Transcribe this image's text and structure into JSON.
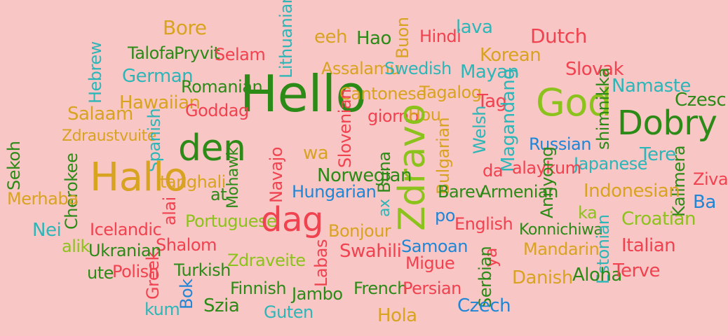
{
  "colors": {
    "background": "#f9c6c6",
    "green": "#3a9a1e",
    "dark_green": "#2c8a17",
    "lime": "#8cc21c",
    "red": "#f0424f",
    "orange": "#d8a321",
    "blue": "#1f86d6",
    "teal": "#2db6b8"
  },
  "words": {
    "bore": "Bore",
    "talofa": "Talofa",
    "pryvit": "Pryvit",
    "selam": "Selam",
    "lithuanian": "Lithuanian",
    "eeh": "eeh",
    "hao": "Hao",
    "buon": "Buon",
    "hindi": "Hindi",
    "lava": "lava",
    "dutch": "Dutch",
    "hebrew": "Hebrew",
    "german": "German",
    "assalamu": "Assalamu",
    "swedish": "Swedish",
    "korean": "Korean",
    "mayan": "Mayan",
    "slovak": "Slovak",
    "romanian": "Romanian",
    "hello": "Hello",
    "namaste": "Namaste",
    "cantonese": "Cantonese",
    "tagalog": "Tagalog",
    "czesc": "Czesc",
    "hawaiian": "Hawaiian",
    "salaam": "Salaam",
    "goddag": "Goddag",
    "god": "God",
    "tag": "Tag",
    "shimnikka": "shimnikka",
    "giorno": "giorno",
    "hou": "Hou",
    "dobry": "Dobry",
    "zdraustvuite": "Zdraustvuite",
    "slovenian": "Slovenian",
    "magandang": "Magandang",
    "welsh": "Welsh",
    "spanish": "Spanish",
    "den": "den",
    "mohawk": "Mohawk",
    "russian": "Russian",
    "tere": "Tere",
    "sekoh": "Sekoh",
    "wa": "wa",
    "bulgarian": "Bulgarian",
    "zdravo": "Zdravo",
    "japanese": "Japanese",
    "kalimera": "Kalimera",
    "buna": "Buna",
    "cherokee": "Cherokee",
    "hallo": "Hallo",
    "tanghali": "tanghali",
    "navajo": "Navajo",
    "norwegian": "Norwegian",
    "alaykum": "alaykum",
    "da": "da",
    "annyong": "Annyong",
    "ziva": "Ziva",
    "at": "at",
    "hungarian": "Hungarian",
    "indonesian": "Indonesian",
    "barev": "Barev",
    "armenian": "Armenian",
    "merhaba": "Merhaba",
    "alai": "alai",
    "ba": "Ba",
    "ax": "ax",
    "ka": "ka",
    "portuguese": "Portuguese",
    "dag": "dag",
    "po": "po",
    "english": "English",
    "croatian": "Croatian",
    "nei": "Nei",
    "icelandic": "Icelandic",
    "bonjour": "Bonjour",
    "konnichiwa": "Konnichiwa",
    "estonian": "Estonian",
    "alik": "alik",
    "shalom": "Shalom",
    "ukranian": "Ukranian",
    "samoan": "Samoan",
    "mandarin": "Mandarin",
    "italian": "Italian",
    "zdraveite": "Zdraveite",
    "swahili": "Swahili",
    "labas": "Labas",
    "ya": "ya",
    "migue": "Migue",
    "ute": "ute",
    "polish": "Polish",
    "turkish": "Turkish",
    "serbian": "Serbian",
    "aloha": "Aloha",
    "terve": "Terve",
    "danish": "Danish",
    "greek": "Greek",
    "bok": "Bok",
    "finnish": "Finnish",
    "french": "French",
    "persian": "Persian",
    "kum": "kum",
    "szia": "Szia",
    "jambo": "Jambo",
    "czech": "Czech",
    "guten": "Guten",
    "hola": "Hola"
  }
}
